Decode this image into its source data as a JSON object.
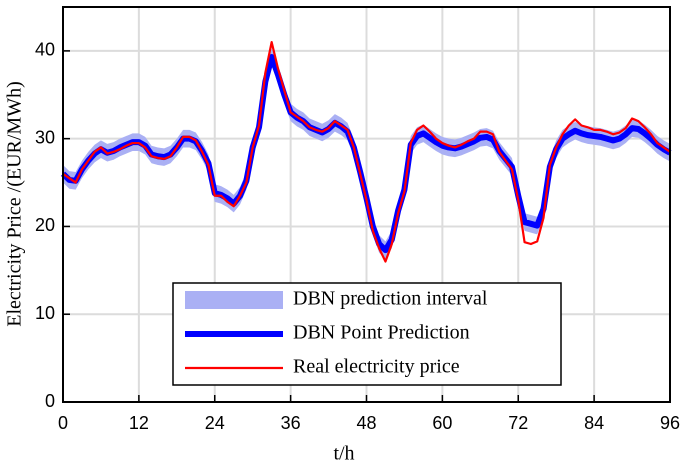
{
  "chart_data": {
    "type": "line",
    "xlabel": "t/h",
    "ylabel": "Electricity Price /(EUR/MWh)",
    "x": [
      0,
      1,
      2,
      3,
      4,
      5,
      6,
      7,
      8,
      9,
      10,
      11,
      12,
      13,
      14,
      15,
      16,
      17,
      18,
      19,
      20,
      21,
      22,
      23,
      24,
      25,
      26,
      27,
      28,
      29,
      30,
      31,
      32,
      33,
      34,
      35,
      36,
      37,
      38,
      39,
      40,
      41,
      42,
      43,
      44,
      45,
      46,
      47,
      48,
      49,
      50,
      51,
      52,
      53,
      54,
      55,
      56,
      57,
      58,
      59,
      60,
      61,
      62,
      63,
      64,
      65,
      66,
      67,
      68,
      69,
      70,
      71,
      72,
      73,
      74,
      75,
      76,
      77,
      78,
      79,
      80,
      81,
      82,
      83,
      84,
      85,
      86,
      87,
      88,
      89,
      90,
      91,
      92,
      93,
      94,
      95,
      96
    ],
    "series": [
      {
        "name": "DBN prediction interval",
        "color": "#aab0f4",
        "lower": [
          25,
          24.3,
          24.2,
          25.5,
          26.5,
          27.3,
          27.8,
          27.4,
          27.6,
          28,
          28.3,
          28.6,
          28.6,
          28.2,
          27.2,
          27,
          26.9,
          27.2,
          28,
          29,
          29,
          28.7,
          27.6,
          26.2,
          22.8,
          22.6,
          22.2,
          21.6,
          22.5,
          24.2,
          28,
          30.3,
          35.5,
          38.3,
          36.3,
          34,
          32,
          31.4,
          31,
          30.3,
          30,
          29.7,
          30.1,
          30.8,
          30.4,
          29.8,
          28,
          25.2,
          22.2,
          19,
          17,
          16.3,
          17.5,
          20.8,
          23.2,
          28.3,
          29.3,
          29.6,
          29.1,
          28.6,
          28.2,
          28,
          27.9,
          28.1,
          28.4,
          28.7,
          29.1,
          29.2,
          28.9,
          27.6,
          26.7,
          25.8,
          22.5,
          19.5,
          19.3,
          19.1,
          21,
          25.8,
          27.8,
          29,
          29.5,
          29.9,
          29.6,
          29.4,
          29.3,
          29.2,
          29,
          28.8,
          29,
          29.5,
          30.2,
          30.1,
          29.6,
          29,
          28.3,
          27.8,
          27.4
        ],
        "upper": [
          27,
          26.3,
          26.2,
          27.5,
          28.5,
          29.3,
          29.8,
          29.4,
          29.6,
          30,
          30.3,
          30.6,
          30.6,
          30.2,
          29.2,
          29,
          28.9,
          29.2,
          30,
          31,
          31,
          30.7,
          29.6,
          28.2,
          24.8,
          24.6,
          24.2,
          23.6,
          24.5,
          26.2,
          30,
          32.3,
          37.5,
          40.3,
          38.3,
          36,
          34,
          33.4,
          33,
          32.3,
          32,
          31.7,
          32.1,
          32.8,
          32.4,
          31.8,
          30,
          27.2,
          24.2,
          21,
          19,
          18.3,
          19.5,
          22.8,
          25.2,
          30.3,
          31.3,
          31.6,
          31.1,
          30.6,
          30.2,
          30,
          29.9,
          30.1,
          30.4,
          30.7,
          31.1,
          31.2,
          30.9,
          29.6,
          28.7,
          27.8,
          24.5,
          21.5,
          21.3,
          21.1,
          23,
          27.8,
          29.8,
          31,
          31.5,
          31.9,
          31.6,
          31.4,
          31.3,
          31.2,
          31,
          30.8,
          31,
          31.5,
          32.2,
          32.1,
          31.6,
          31,
          30.3,
          29.8,
          29.4
        ]
      },
      {
        "name": "DBN Point Prediction",
        "color": "#0000ff",
        "values": [
          26,
          25.3,
          25.2,
          26.5,
          27.5,
          28.3,
          28.8,
          28.4,
          28.6,
          29,
          29.3,
          29.6,
          29.6,
          29.2,
          28.2,
          28,
          27.9,
          28.2,
          29,
          30,
          30,
          29.7,
          28.6,
          27.2,
          23.8,
          23.6,
          23.2,
          22.6,
          23.5,
          25.2,
          29,
          31.3,
          36.5,
          39.3,
          37.3,
          35,
          33,
          32.4,
          32,
          31.3,
          31,
          30.7,
          31.1,
          31.8,
          31.4,
          30.8,
          29,
          26.2,
          23.2,
          20,
          18,
          17.3,
          18.5,
          21.8,
          24.2,
          29.3,
          30.3,
          30.6,
          30.1,
          29.6,
          29.2,
          29,
          28.9,
          29.1,
          29.4,
          29.7,
          30.1,
          30.2,
          29.9,
          28.6,
          27.7,
          26.8,
          23.5,
          20.5,
          20.3,
          20.1,
          22,
          26.8,
          28.8,
          30,
          30.5,
          30.9,
          30.6,
          30.4,
          30.3,
          30.2,
          30,
          29.8,
          30,
          30.5,
          31.2,
          31.1,
          30.6,
          30,
          29.3,
          28.8,
          28.4
        ]
      },
      {
        "name": "Real electricity price",
        "color": "#ff0000",
        "values": [
          26,
          25.5,
          25,
          26.5,
          27.5,
          28.5,
          29,
          28.3,
          28.5,
          28.8,
          29.2,
          29.5,
          29.5,
          29,
          28,
          27.8,
          27.7,
          28,
          29,
          30.2,
          30.2,
          29.8,
          28.5,
          27,
          23.5,
          23.5,
          22.8,
          22.3,
          23.5,
          25,
          29,
          31.5,
          37.5,
          41,
          38,
          35.5,
          33,
          32.5,
          32,
          31.3,
          31,
          30.8,
          31.2,
          32,
          31.5,
          31,
          29,
          26,
          23,
          19.5,
          17.5,
          16,
          18,
          21.5,
          24,
          29.5,
          31,
          31.5,
          30.8,
          30,
          29.5,
          29.2,
          29,
          29.3,
          29.7,
          30,
          30.8,
          30.8,
          30.5,
          28.5,
          27.5,
          26.5,
          23,
          18.2,
          18,
          18.3,
          21,
          27,
          29,
          30.5,
          31.5,
          32.2,
          31.5,
          31.3,
          31,
          31,
          30.8,
          30.5,
          30.7,
          31.2,
          32.3,
          32,
          31.3,
          30.5,
          29.5,
          29,
          28.5
        ]
      }
    ],
    "xlim": [
      0,
      96
    ],
    "xticks": [
      0,
      12,
      24,
      36,
      48,
      60,
      72,
      84,
      96
    ],
    "ylim": [
      0,
      45
    ],
    "yticks": [
      0,
      10,
      20,
      30,
      40
    ],
    "grid": true,
    "legend": "lower center"
  }
}
